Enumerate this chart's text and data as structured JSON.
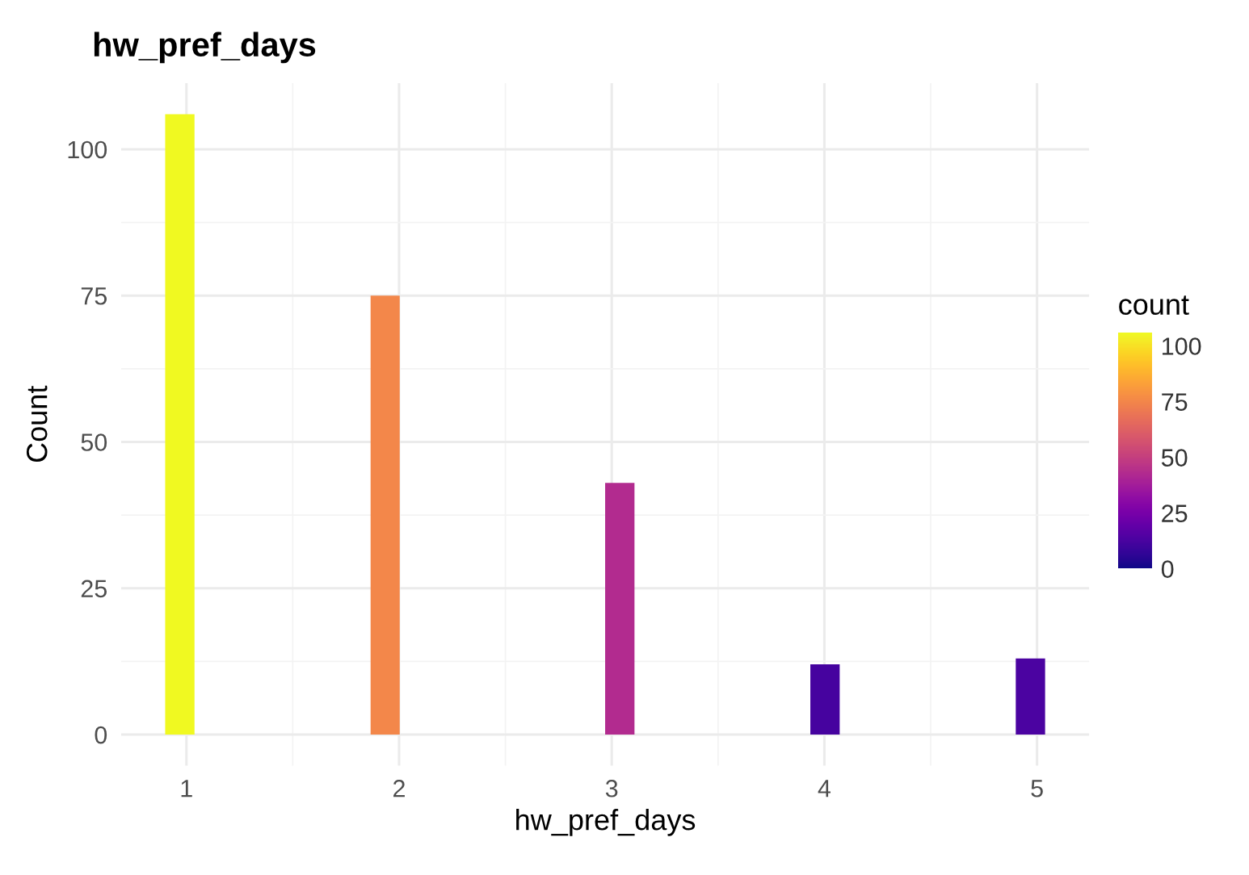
{
  "chart_data": {
    "type": "histogram",
    "title": "hw_pref_days",
    "xlabel": "hw_pref_days",
    "ylabel": "Count",
    "clabel": "count",
    "bins": [
      0.9,
      1.038,
      1.176,
      1.314,
      1.452,
      1.59,
      1.728,
      1.866,
      2.003,
      2.141,
      2.279,
      2.417,
      2.555,
      2.693,
      2.831,
      2.969,
      3.107,
      3.245,
      3.383,
      3.521,
      3.659,
      3.797,
      3.934,
      4.072,
      4.21,
      4.348,
      4.486,
      4.624,
      4.762,
      4.9,
      5.038
    ],
    "values": [
      106,
      0,
      0,
      0,
      0,
      0,
      0,
      75,
      0,
      0,
      0,
      0,
      0,
      0,
      0,
      43,
      0,
      0,
      0,
      0,
      0,
      0,
      12,
      0,
      0,
      0,
      0,
      0,
      0,
      13
    ],
    "xlim": [
      0.693,
      5.245
    ],
    "xticks": [
      1,
      2,
      3,
      4,
      5
    ],
    "ylim": [
      -5.3,
      111.3
    ],
    "yticks": [
      0,
      25,
      50,
      75,
      100
    ],
    "clim": [
      0,
      106
    ],
    "cticks": [
      0,
      25,
      50,
      75,
      100
    ],
    "grid": true
  }
}
